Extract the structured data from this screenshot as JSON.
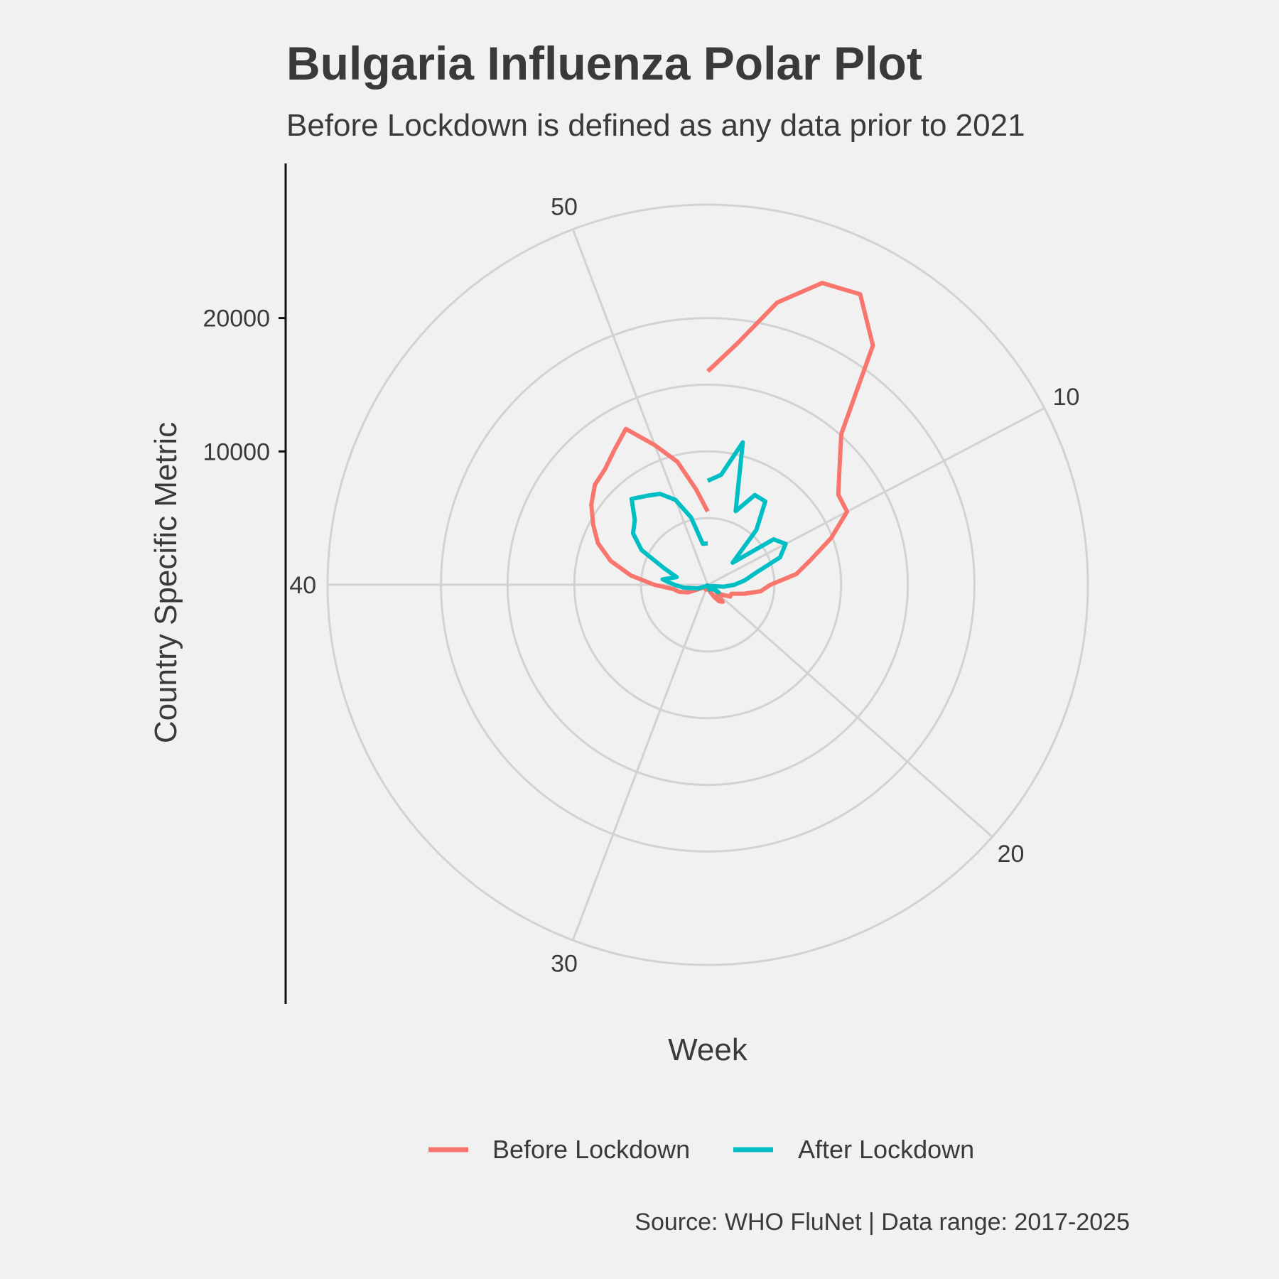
{
  "chart_data": {
    "type": "line",
    "coordinate_system": "polar",
    "title": "Bulgaria Influenza Polar Plot",
    "subtitle": "Before Lockdown is defined as any data prior to 2021",
    "xlabel": "Week",
    "ylabel": "Country Specific Metric",
    "caption": "Source: WHO FluNet | Data range: 2017-2025",
    "x_ticks": [
      {
        "value": 10,
        "label": "10"
      },
      {
        "value": 20,
        "label": "20"
      },
      {
        "value": 30,
        "label": "30"
      },
      {
        "value": 40,
        "label": "40"
      },
      {
        "value": 50,
        "label": "50"
      }
    ],
    "y_ticks": [
      {
        "value": 10000,
        "label": "10000"
      },
      {
        "value": 20000,
        "label": "20000"
      }
    ],
    "xlim": [
      1,
      53
    ],
    "ylim": [
      0,
      28500
    ],
    "grid": true,
    "legend_position": "bottom",
    "series": [
      {
        "name": "Before Lockdown",
        "color": "#f8766d",
        "x": [
          1,
          2,
          3,
          4,
          5,
          6,
          7,
          8,
          9,
          10,
          11,
          12,
          13,
          14,
          15,
          16,
          17,
          18,
          19,
          20,
          21,
          22,
          23,
          24,
          25,
          26,
          27,
          28,
          29,
          30,
          31,
          32,
          33,
          34,
          35,
          36,
          37,
          38,
          39,
          40,
          41,
          42,
          43,
          44,
          45,
          46,
          47,
          48,
          49,
          50,
          51,
          52,
          53
        ],
        "values": [
          16000,
          18200,
          21800,
          24200,
          24600,
          21800,
          15100,
          13200,
          11900,
          11800,
          9900,
          8000,
          6700,
          4700,
          4000,
          2800,
          1900,
          1900,
          1300,
          900,
          1700,
          1500,
          1000,
          600,
          400,
          150,
          200,
          250,
          350,
          400,
          300,
          200,
          100,
          200,
          300,
          600,
          1600,
          2200,
          2600,
          4000,
          5800,
          7500,
          8800,
          9700,
          10600,
          11300,
          11600,
          12300,
          13200,
          11200,
          9500,
          7200,
          5500
        ]
      },
      {
        "name": "After Lockdown",
        "color": "#00bfc4",
        "x": [
          1,
          2,
          3,
          4,
          5,
          6,
          7,
          8,
          9,
          10,
          11,
          12,
          13,
          14,
          15,
          16,
          17,
          18,
          19,
          20,
          21,
          22,
          23,
          24,
          25,
          26,
          27,
          28,
          29,
          30,
          31,
          32,
          33,
          34,
          35,
          36,
          37,
          38,
          39,
          40,
          41,
          42,
          43,
          44,
          45,
          46,
          47,
          48,
          49,
          50,
          51,
          52,
          53
        ],
        "values": [
          7800,
          8300,
          11000,
          5900,
          7600,
          7600,
          5500,
          2500,
          6000,
          6600,
          5800,
          3700,
          2800,
          2000,
          1200,
          400,
          300,
          200,
          1000,
          400,
          200,
          150,
          300,
          400,
          200,
          100,
          50,
          100,
          150,
          150,
          100,
          100,
          100,
          100,
          200,
          300,
          800,
          1100,
          1800,
          2500,
          3400,
          2400,
          3500,
          5600,
          6800,
          7300,
          8600,
          8100,
          7700,
          6800,
          5200,
          3100,
          3100
        ]
      }
    ]
  }
}
